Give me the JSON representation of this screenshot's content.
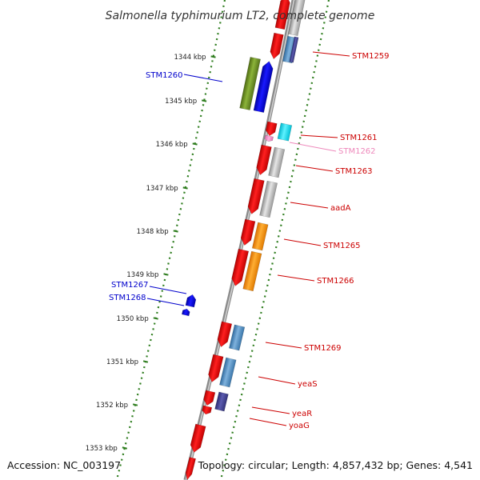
{
  "title": "Salmonella typhimurium LT2, complete genome",
  "footer": {
    "accession": "Accession: NC_003197",
    "topology": "Topology: circular; Length: 4,857,432 bp; Genes: 4,541"
  },
  "ticks": [
    {
      "label": "1344 kbp"
    },
    {
      "label": "1345 kbp"
    },
    {
      "label": "1346 kbp"
    },
    {
      "label": "1347 kbp"
    },
    {
      "label": "1348 kbp"
    },
    {
      "label": "1349 kbp"
    },
    {
      "label": "1350 kbp"
    },
    {
      "label": "1351 kbp"
    },
    {
      "label": "1352 kbp"
    },
    {
      "label": "1353 kbp"
    }
  ],
  "gene_labels": [
    {
      "text": "STM1259",
      "color": "#cc0000"
    },
    {
      "text": "STM1260",
      "color": "#0000cc"
    },
    {
      "text": "STM1261",
      "color": "#cc0000"
    },
    {
      "text": "STM1262",
      "color": "#ee88bb"
    },
    {
      "text": "STM1263",
      "color": "#cc0000"
    },
    {
      "text": "aadA",
      "color": "#cc0000"
    },
    {
      "text": "STM1265",
      "color": "#cc0000"
    },
    {
      "text": "STM1266",
      "color": "#cc0000"
    },
    {
      "text": "STM1267",
      "color": "#0000cc"
    },
    {
      "text": "STM1268",
      "color": "#0000cc"
    },
    {
      "text": "STM1269",
      "color": "#cc0000"
    },
    {
      "text": "yeaS",
      "color": "#cc0000"
    },
    {
      "text": "yeaR",
      "color": "#cc0000"
    },
    {
      "text": "yoaG",
      "color": "#cc0000"
    }
  ],
  "colors": {
    "forward_gene": "#ff0000",
    "reverse_gene": "#0000ff",
    "tick": "#2e7d1e",
    "backbone": "#888888"
  }
}
